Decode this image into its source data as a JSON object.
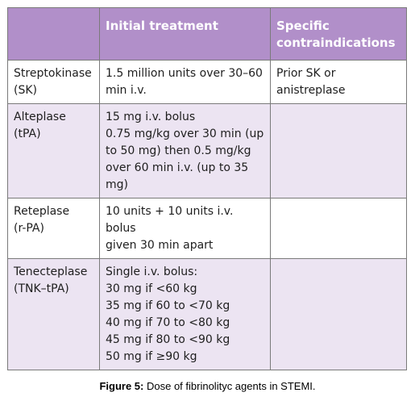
{
  "table": {
    "headers": [
      "",
      "Initial treatment",
      "Specific contraindications"
    ],
    "rows": [
      {
        "agent": [
          "Streptokinase",
          "(SK)"
        ],
        "treatment": [
          "1.5 million units over 30–60",
          "min i.v."
        ],
        "contraindications": [
          "Prior SK or",
          "anistreplase"
        ]
      },
      {
        "agent": [
          "Alteplase",
          "(tPA)"
        ],
        "treatment": [
          "15 mg i.v. bolus",
          "0.75 mg/kg over 30 min (up",
          "to 50 mg) then 0.5 mg/kg",
          "over 60 min i.v. (up to 35 mg)"
        ],
        "contraindications": []
      },
      {
        "agent": [
          "Reteplase",
          "(r-PA)"
        ],
        "treatment": [
          "10 units + 10 units i.v. bolus",
          "given 30 min apart"
        ],
        "contraindications": []
      },
      {
        "agent": [
          "Tenecteplase",
          "(TNK–tPA)"
        ],
        "treatment": [
          "Single i.v. bolus:",
          "30 mg if <60 kg",
          "35 mg if 60 to <70 kg",
          "40 mg if 70 to <80 kg",
          "45 mg if 80 to <90 kg",
          "50 mg if ≥90 kg"
        ],
        "contraindications": []
      }
    ]
  },
  "caption": {
    "label": "Figure 5:",
    "text": " Dose of fibrinolityc agents in STEMI."
  }
}
